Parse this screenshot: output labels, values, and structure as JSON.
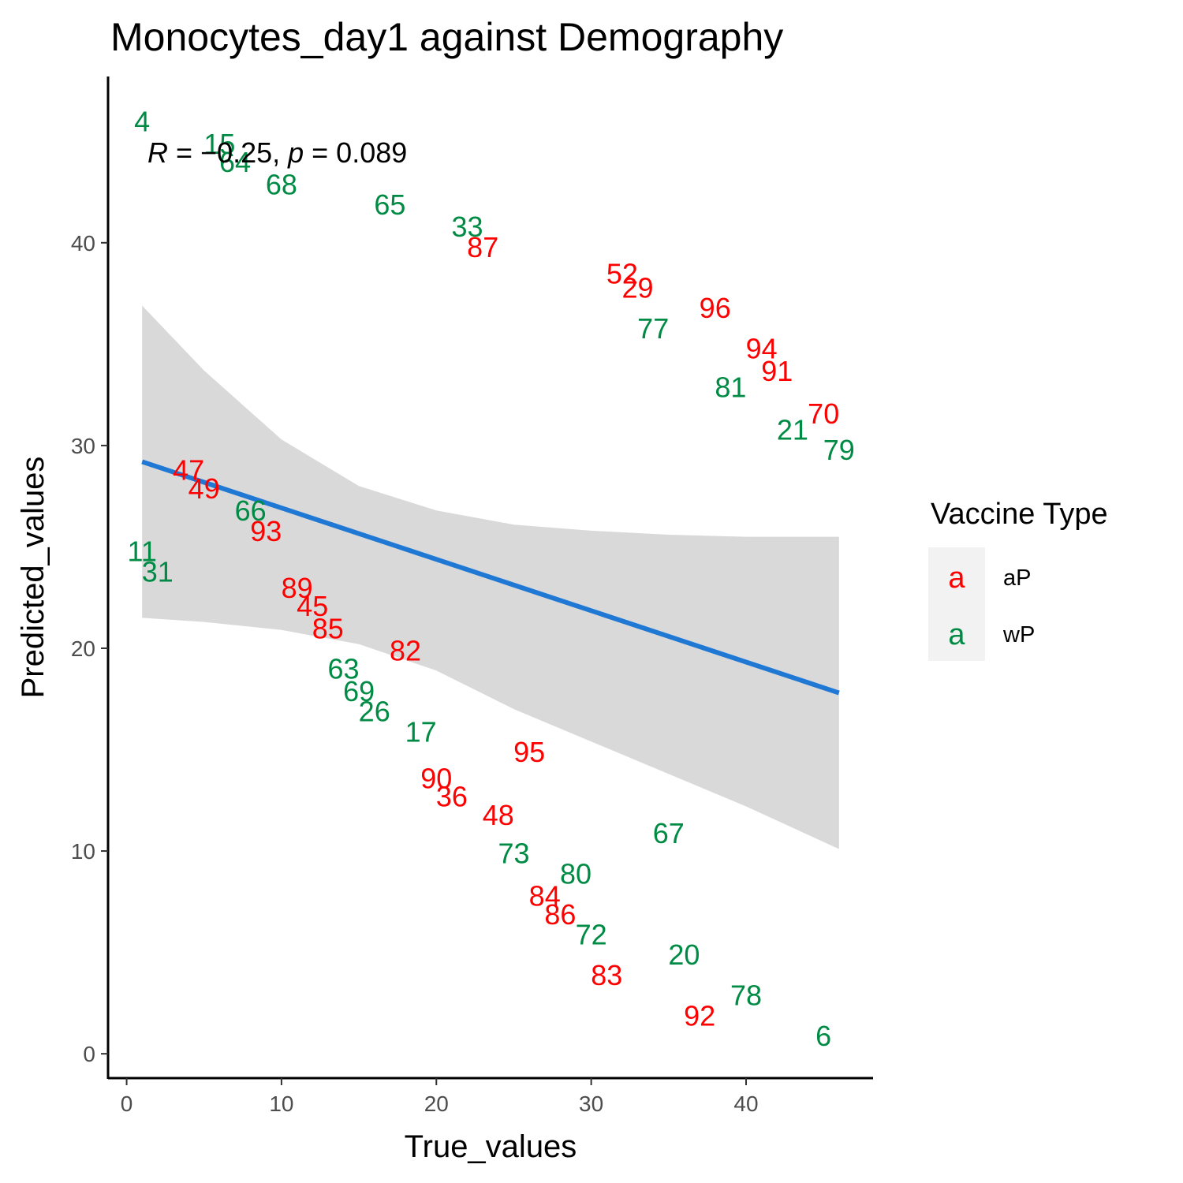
{
  "chart_data": {
    "type": "scatter",
    "title": "Monocytes_day1 against Demography",
    "xlabel": "True_values",
    "ylabel": "Predicted_values",
    "xlim": [
      -1.2,
      48.2
    ],
    "ylim": [
      -1.2,
      48.2
    ],
    "x_ticks": [
      0,
      10,
      20,
      30,
      40
    ],
    "y_ticks": [
      0,
      10,
      20,
      30,
      40
    ],
    "grid": false,
    "annotation": {
      "r_label": "R",
      "r_text": " = −0.25, ",
      "p_label": "p",
      "p_text": " = 0.089"
    },
    "regression": {
      "x_range": [
        1,
        46
      ],
      "line": [
        29.2,
        17.8
      ],
      "ci_band": {
        "x": [
          1,
          5,
          10,
          15,
          20,
          25,
          30,
          35,
          40,
          46
        ],
        "upper": [
          36.9,
          33.7,
          30.3,
          28.0,
          26.8,
          26.1,
          25.8,
          25.6,
          25.5,
          25.5
        ],
        "lower": [
          21.5,
          21.3,
          20.9,
          20.2,
          18.9,
          17.0,
          15.4,
          13.8,
          12.2,
          10.1
        ]
      }
    },
    "series": [
      {
        "name": "aP",
        "color": "#ff0000",
        "points": [
          {
            "label": "87",
            "x": 23,
            "y": 39.8
          },
          {
            "label": "52",
            "x": 32,
            "y": 38.5
          },
          {
            "label": "29",
            "x": 33,
            "y": 37.8
          },
          {
            "label": "96",
            "x": 38,
            "y": 36.8
          },
          {
            "label": "94",
            "x": 41,
            "y": 34.8
          },
          {
            "label": "91",
            "x": 42,
            "y": 33.7
          },
          {
            "label": "70",
            "x": 45,
            "y": 31.6
          },
          {
            "label": "47",
            "x": 4,
            "y": 28.8
          },
          {
            "label": "49",
            "x": 5,
            "y": 27.9
          },
          {
            "label": "93",
            "x": 9,
            "y": 25.8
          },
          {
            "label": "89",
            "x": 11,
            "y": 23.0
          },
          {
            "label": "45",
            "x": 12,
            "y": 22.1
          },
          {
            "label": "85",
            "x": 13,
            "y": 21.0
          },
          {
            "label": "82",
            "x": 18,
            "y": 19.9
          },
          {
            "label": "95",
            "x": 26,
            "y": 14.9
          },
          {
            "label": "90",
            "x": 20,
            "y": 13.6
          },
          {
            "label": "36",
            "x": 21,
            "y": 12.7
          },
          {
            "label": "48",
            "x": 24,
            "y": 11.8
          },
          {
            "label": "84",
            "x": 27,
            "y": 7.8
          },
          {
            "label": "86",
            "x": 28,
            "y": 6.9
          },
          {
            "label": "83",
            "x": 31,
            "y": 3.9
          },
          {
            "label": "92",
            "x": 37,
            "y": 1.9
          }
        ]
      },
      {
        "name": "wP",
        "color": "#008b45",
        "points": [
          {
            "label": "4",
            "x": 1,
            "y": 46.0
          },
          {
            "label": "15",
            "x": 6,
            "y": 44.9
          },
          {
            "label": "64",
            "x": 7,
            "y": 44.0
          },
          {
            "label": "68",
            "x": 10,
            "y": 42.9
          },
          {
            "label": "65",
            "x": 17,
            "y": 41.9
          },
          {
            "label": "33",
            "x": 22,
            "y": 40.8
          },
          {
            "label": "77",
            "x": 34,
            "y": 35.8
          },
          {
            "label": "81",
            "x": 39,
            "y": 32.9
          },
          {
            "label": "21",
            "x": 43,
            "y": 30.8
          },
          {
            "label": "79",
            "x": 46,
            "y": 29.8
          },
          {
            "label": "66",
            "x": 8,
            "y": 26.8
          },
          {
            "label": "11",
            "x": 1,
            "y": 24.8
          },
          {
            "label": "31",
            "x": 2,
            "y": 23.8
          },
          {
            "label": "63",
            "x": 14,
            "y": 19.0
          },
          {
            "label": "69",
            "x": 15,
            "y": 17.9
          },
          {
            "label": "26",
            "x": 16,
            "y": 16.9
          },
          {
            "label": "17",
            "x": 19,
            "y": 15.9
          },
          {
            "label": "67",
            "x": 35,
            "y": 10.9
          },
          {
            "label": "73",
            "x": 25,
            "y": 9.9
          },
          {
            "label": "80",
            "x": 29,
            "y": 8.9
          },
          {
            "label": "72",
            "x": 30,
            "y": 5.9
          },
          {
            "label": "20",
            "x": 36,
            "y": 4.9
          },
          {
            "label": "78",
            "x": 40,
            "y": 2.9
          },
          {
            "label": "6",
            "x": 45,
            "y": 0.9
          }
        ]
      }
    ],
    "legend": {
      "title": "Vaccine Type",
      "key_glyph": "a",
      "placement": "right",
      "entries": [
        {
          "label": "aP",
          "color": "#ff0000"
        },
        {
          "label": "wP",
          "color": "#008b45"
        }
      ]
    },
    "colors": {
      "regression_line": "#1f78d4",
      "ci_band": "#d9d9d9",
      "axis": "#000000",
      "tick_text": "#4d4d4d",
      "legend_bg": "#f2f2f2"
    }
  }
}
